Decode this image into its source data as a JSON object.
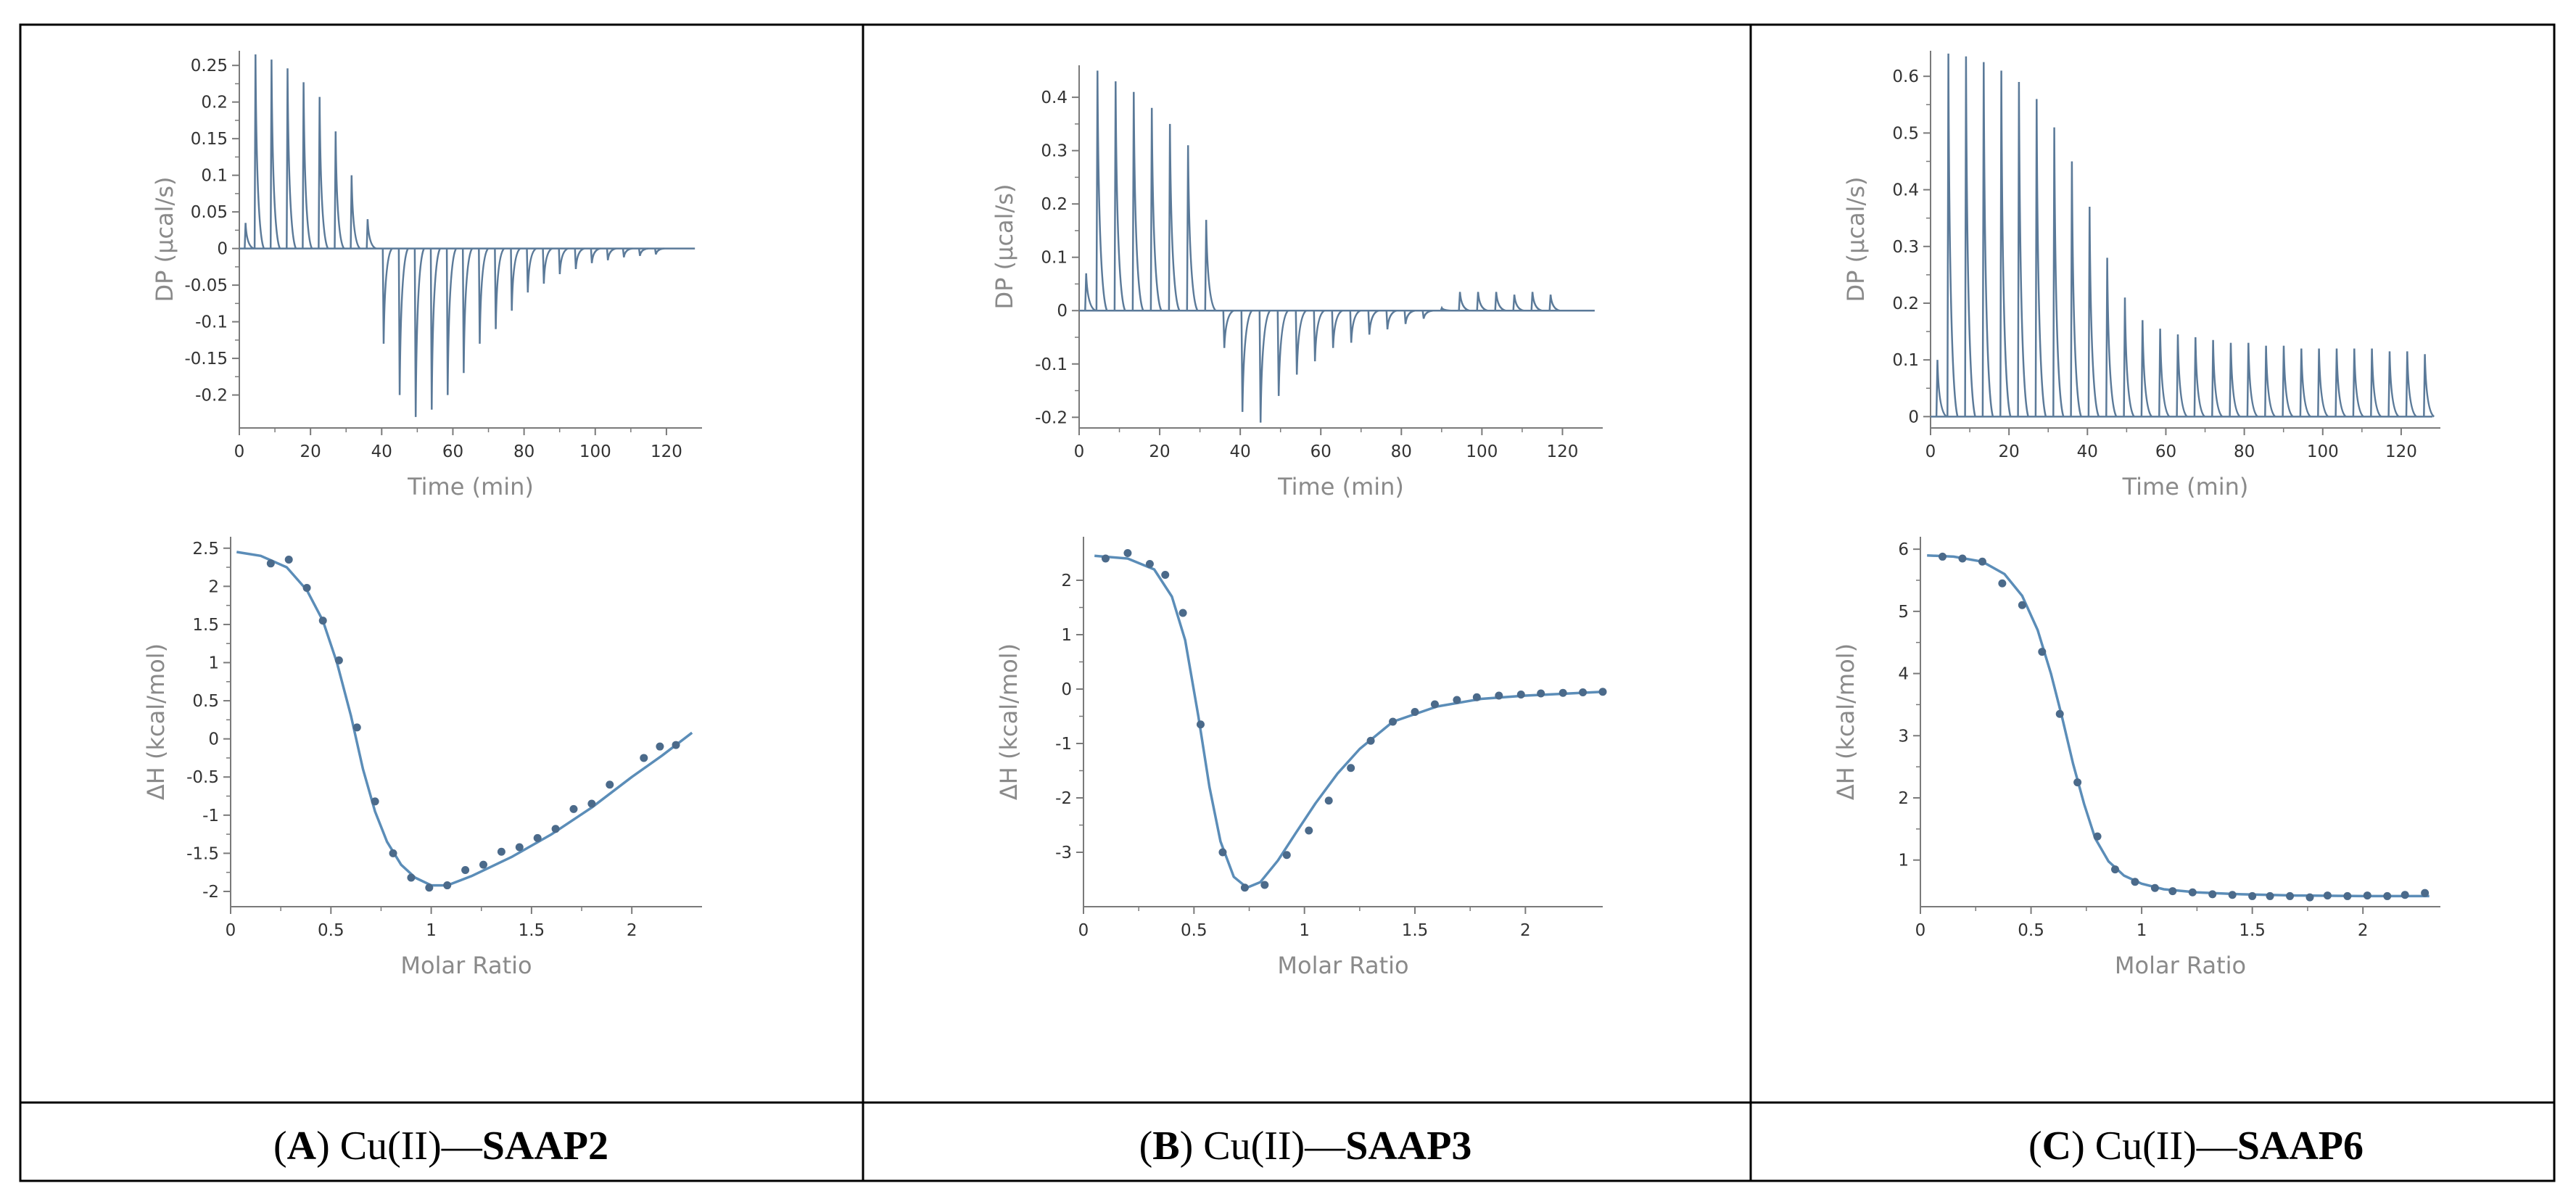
{
  "colors": {
    "trace": "#5b7a99",
    "fit": "#5b8db8",
    "point": "#4b6a8a",
    "axis": "#7a7a7a",
    "border": "#000000"
  },
  "panels": [
    {
      "id": "A",
      "caption": {
        "open": "(",
        "letter": "A",
        "close": ")",
        "metal": "Cu(II)—",
        "ligand": "SAAP2"
      }
    },
    {
      "id": "B",
      "caption": {
        "open": "(",
        "letter": "B",
        "close": ")",
        "metal": "Cu(II)—",
        "ligand": "SAAP3"
      }
    },
    {
      "id": "C",
      "caption": {
        "open": "(",
        "letter": "C",
        "close": ")",
        "metal": "Cu(II)—",
        "ligand": "SAAP6"
      }
    }
  ],
  "chart_data": [
    {
      "panel": "A",
      "type": "line",
      "kind": "thermogram",
      "xlabel": "Time (min)",
      "ylabel": "DP (μcal/s)",
      "xlim": [
        0,
        130
      ],
      "ylim": [
        -0.245,
        0.27
      ],
      "xticks": [
        0,
        20,
        40,
        60,
        80,
        100,
        120
      ],
      "yticks": [
        0.25,
        0.2,
        0.15,
        0.1,
        0.05,
        0,
        -0.05,
        -0.1,
        -0.15,
        -0.2
      ],
      "ytick_labels": [
        "0.25",
        "0.2",
        "0.15",
        "0.1",
        "0.05",
        "0",
        "-0.05",
        "-0.1",
        "-0.15",
        "-0.2"
      ],
      "injection_times": [
        1.5,
        4.3,
        8.8,
        13.3,
        17.8,
        22.3,
        26.8,
        31.3,
        35.8,
        40.3,
        44.8,
        49.3,
        53.8,
        58.3,
        62.8,
        67.3,
        71.8,
        76.3,
        80.8,
        85.3,
        89.8,
        94.3,
        98.8,
        103.3,
        107.8,
        112.3,
        116.8
      ],
      "peak_heights": [
        0.035,
        0.265,
        0.258,
        0.246,
        0.227,
        0.207,
        0.16,
        0.1,
        0.04,
        -0.13,
        -0.2,
        -0.23,
        -0.22,
        -0.2,
        -0.17,
        -0.13,
        -0.11,
        -0.085,
        -0.06,
        -0.048,
        -0.035,
        -0.028,
        -0.02,
        -0.016,
        -0.012,
        -0.01,
        -0.008
      ]
    },
    {
      "panel": "A",
      "type": "scatter",
      "kind": "isotherm",
      "xlabel": "Molar Ratio",
      "ylabel": "ΔH (kcal/mol)",
      "xlim": [
        0,
        2.35
      ],
      "ylim": [
        -2.2,
        2.65
      ],
      "xticks": [
        0,
        0.5,
        1,
        1.5,
        2
      ],
      "xtick_labels": [
        "0",
        "0.5",
        "1",
        "1.5",
        "2"
      ],
      "yticks": [
        2.5,
        2,
        1.5,
        1,
        0.5,
        0,
        -0.5,
        -1,
        -1.5,
        -2
      ],
      "ytick_labels": [
        "2.5",
        "2",
        "1.5",
        "1",
        "0.5",
        "0",
        "-0.5",
        "-1",
        "-1.5",
        "-2"
      ],
      "points": {
        "x": [
          0.2,
          0.29,
          0.38,
          0.46,
          0.54,
          0.63,
          0.72,
          0.81,
          0.9,
          0.99,
          1.08,
          1.17,
          1.26,
          1.35,
          1.44,
          1.53,
          1.62,
          1.71,
          1.8,
          1.89,
          2.06,
          2.14,
          2.22
        ],
        "y": [
          2.3,
          2.35,
          1.98,
          1.55,
          1.03,
          0.15,
          -0.82,
          -1.5,
          -1.82,
          -1.95,
          -1.92,
          -1.72,
          -1.65,
          -1.48,
          -1.42,
          -1.3,
          -1.18,
          -0.92,
          -0.85,
          -0.6,
          -0.25,
          -0.1,
          -0.08
        ]
      },
      "fit": {
        "x": [
          0.03,
          0.15,
          0.28,
          0.38,
          0.46,
          0.53,
          0.6,
          0.66,
          0.72,
          0.78,
          0.85,
          0.92,
          1.0,
          1.08,
          1.2,
          1.4,
          1.6,
          1.8,
          2.0,
          2.15,
          2.3
        ],
        "y": [
          2.45,
          2.4,
          2.25,
          1.95,
          1.55,
          1.0,
          0.3,
          -0.4,
          -0.95,
          -1.35,
          -1.65,
          -1.82,
          -1.92,
          -1.92,
          -1.8,
          -1.55,
          -1.25,
          -0.9,
          -0.5,
          -0.22,
          0.08
        ]
      }
    },
    {
      "panel": "B",
      "type": "line",
      "kind": "thermogram",
      "xlabel": "Time (min)",
      "ylabel": "DP (μcal/s)",
      "xlim": [
        0,
        130
      ],
      "ylim": [
        -0.22,
        0.46
      ],
      "xticks": [
        0,
        20,
        40,
        60,
        80,
        100,
        120
      ],
      "yticks": [
        0.4,
        0.3,
        0.2,
        0.1,
        0,
        -0.1,
        -0.2
      ],
      "ytick_labels": [
        "0.4",
        "0.3",
        "0.2",
        "0.1",
        "0",
        "-0.1",
        "-0.2"
      ],
      "injection_times": [
        1.5,
        4.3,
        8.8,
        13.3,
        17.8,
        22.3,
        26.8,
        31.3,
        35.8,
        40.3,
        44.8,
        49.3,
        53.8,
        58.3,
        62.8,
        67.3,
        71.8,
        76.3,
        80.8,
        85.3,
        89.8,
        94.3,
        98.8,
        103.3,
        107.8,
        112.3,
        116.8
      ],
      "peak_heights": [
        0.07,
        0.45,
        0.43,
        0.41,
        0.38,
        0.35,
        0.31,
        0.17,
        -0.07,
        -0.19,
        -0.21,
        -0.16,
        -0.12,
        -0.095,
        -0.07,
        -0.06,
        -0.045,
        -0.035,
        -0.025,
        -0.015,
        0.005,
        0.035,
        0.035,
        0.035,
        0.03,
        0.035,
        0.03
      ]
    },
    {
      "panel": "B",
      "type": "scatter",
      "kind": "isotherm",
      "xlabel": "Molar Ratio",
      "ylabel": "ΔH (kcal/mol)",
      "xlim": [
        0,
        2.35
      ],
      "ylim": [
        -4.0,
        2.8
      ],
      "xticks": [
        0,
        0.5,
        1,
        1.5,
        2
      ],
      "xtick_labels": [
        "0",
        "0.5",
        "1",
        "1.5",
        "2"
      ],
      "yticks": [
        2,
        1,
        0,
        -1,
        -2,
        -3
      ],
      "ytick_labels": [
        "2",
        "1",
        "0",
        "-1",
        "-2",
        "-3"
      ],
      "points": {
        "x": [
          0.1,
          0.2,
          0.3,
          0.37,
          0.45,
          0.53,
          0.63,
          0.73,
          0.82,
          0.92,
          1.02,
          1.11,
          1.21,
          1.3,
          1.4,
          1.5,
          1.59,
          1.69,
          1.78,
          1.88,
          1.98,
          2.07,
          2.17,
          2.26,
          2.35
        ],
        "y": [
          2.4,
          2.5,
          2.3,
          2.1,
          1.4,
          -0.65,
          -3.0,
          -3.65,
          -3.6,
          -3.05,
          -2.6,
          -2.05,
          -1.45,
          -0.95,
          -0.6,
          -0.42,
          -0.28,
          -0.2,
          -0.15,
          -0.12,
          -0.1,
          -0.08,
          -0.07,
          -0.06,
          -0.05
        ]
      },
      "fit": {
        "x": [
          0.05,
          0.2,
          0.32,
          0.4,
          0.46,
          0.52,
          0.57,
          0.62,
          0.68,
          0.74,
          0.8,
          0.88,
          0.96,
          1.05,
          1.15,
          1.25,
          1.4,
          1.6,
          1.8,
          2.0,
          2.2,
          2.35
        ],
        "y": [
          2.45,
          2.4,
          2.2,
          1.7,
          0.9,
          -0.5,
          -1.8,
          -2.8,
          -3.45,
          -3.65,
          -3.55,
          -3.15,
          -2.65,
          -2.1,
          -1.55,
          -1.1,
          -0.6,
          -0.32,
          -0.18,
          -0.12,
          -0.08,
          -0.05
        ]
      }
    },
    {
      "panel": "C",
      "type": "line",
      "kind": "thermogram",
      "xlabel": "Time (min)",
      "ylabel": "DP (μcal/s)",
      "xlim": [
        0,
        130
      ],
      "ylim": [
        -0.02,
        0.645
      ],
      "xticks": [
        0,
        20,
        40,
        60,
        80,
        100,
        120
      ],
      "yticks": [
        0.6,
        0.5,
        0.4,
        0.3,
        0.2,
        0.1,
        0
      ],
      "ytick_labels": [
        "0.6",
        "0.5",
        "0.4",
        "0.3",
        "0.2",
        "0.1",
        "0"
      ],
      "injection_times": [
        1.5,
        4.3,
        8.8,
        13.3,
        17.8,
        22.3,
        26.8,
        31.3,
        35.8,
        40.3,
        44.8,
        49.3,
        53.8,
        58.3,
        62.8,
        67.3,
        71.8,
        76.3,
        80.8,
        85.3,
        89.8,
        94.3,
        98.8,
        103.3,
        107.8,
        112.3,
        116.8,
        121.3,
        125.8
      ],
      "peak_heights": [
        0.1,
        0.64,
        0.635,
        0.625,
        0.61,
        0.59,
        0.56,
        0.51,
        0.45,
        0.37,
        0.28,
        0.21,
        0.17,
        0.155,
        0.145,
        0.14,
        0.135,
        0.13,
        0.13,
        0.125,
        0.125,
        0.12,
        0.12,
        0.12,
        0.12,
        0.12,
        0.115,
        0.115,
        0.11
      ]
    },
    {
      "panel": "C",
      "type": "scatter",
      "kind": "isotherm",
      "xlabel": "Molar Ratio",
      "ylabel": "ΔH (kcal/mol)",
      "xlim": [
        0,
        2.35
      ],
      "ylim": [
        0.25,
        6.2
      ],
      "xticks": [
        0,
        0.5,
        1,
        1.5,
        2
      ],
      "xtick_labels": [
        "0",
        "0.5",
        "1",
        "1.5",
        "2"
      ],
      "yticks": [
        6,
        5,
        4,
        3,
        2,
        1
      ],
      "ytick_labels": [
        "6",
        "5",
        "4",
        "3",
        "2",
        "1"
      ],
      "points": {
        "x": [
          0.1,
          0.19,
          0.28,
          0.37,
          0.46,
          0.55,
          0.63,
          0.71,
          0.8,
          0.88,
          0.97,
          1.06,
          1.14,
          1.23,
          1.32,
          1.41,
          1.5,
          1.58,
          1.67,
          1.76,
          1.84,
          1.93,
          2.02,
          2.11,
          2.19,
          2.28
        ],
        "y": [
          5.88,
          5.85,
          5.8,
          5.45,
          5.1,
          4.35,
          3.35,
          2.25,
          1.38,
          0.85,
          0.65,
          0.55,
          0.5,
          0.48,
          0.45,
          0.44,
          0.42,
          0.42,
          0.42,
          0.4,
          0.43,
          0.42,
          0.43,
          0.42,
          0.44,
          0.47
        ]
      },
      "fit": {
        "x": [
          0.03,
          0.15,
          0.28,
          0.38,
          0.46,
          0.53,
          0.59,
          0.64,
          0.69,
          0.74,
          0.79,
          0.85,
          0.92,
          1.0,
          1.1,
          1.25,
          1.45,
          1.7,
          2.0,
          2.3
        ],
        "y": [
          5.9,
          5.88,
          5.8,
          5.6,
          5.25,
          4.7,
          4.0,
          3.3,
          2.55,
          1.9,
          1.35,
          0.98,
          0.75,
          0.62,
          0.53,
          0.48,
          0.45,
          0.43,
          0.42,
          0.42
        ]
      }
    }
  ]
}
